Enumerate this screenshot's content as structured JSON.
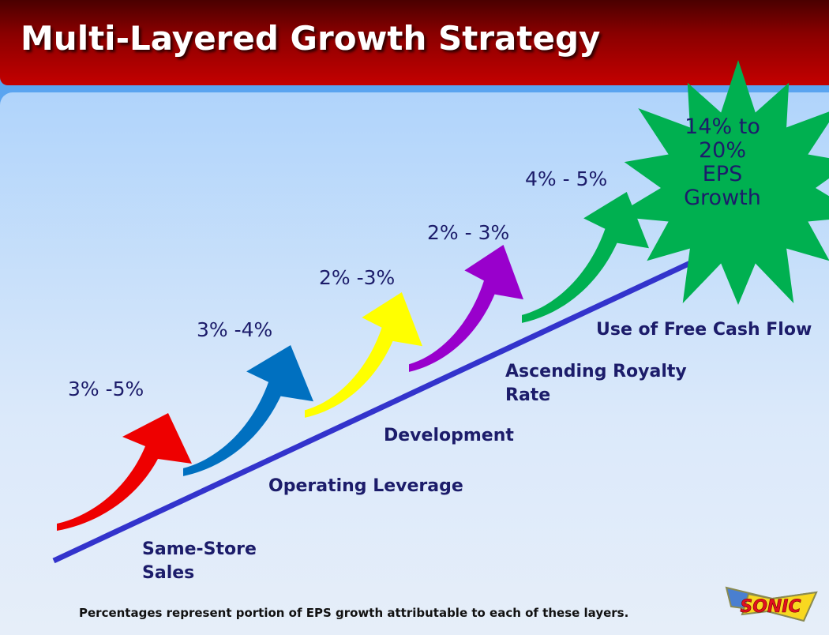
{
  "title": "Multi-Layered Growth Strategy",
  "layers": [
    {
      "label": "Same-Store Sales",
      "label_lines": [
        "Same-Store",
        "Sales"
      ],
      "percent": "3% -5%",
      "color": "#ee0000"
    },
    {
      "label": "Operating Leverage",
      "label_lines": [
        "Operating Leverage"
      ],
      "percent": "3% -4%",
      "color": "#0070c0"
    },
    {
      "label": "Development",
      "label_lines": [
        "Development"
      ],
      "percent": "2% -3%",
      "color": "#ffff00"
    },
    {
      "label": "Ascending Royalty Rate",
      "label_lines": [
        "Ascending Royalty",
        "Rate"
      ],
      "percent": "2% - 3%",
      "color": "#9900cc"
    },
    {
      "label": "Use of Free Cash Flow",
      "label_lines": [
        "Use of Free Cash Flow"
      ],
      "percent": "4% - 5%",
      "color": "#00b050"
    }
  ],
  "total": {
    "lines": [
      "14% to",
      "20%",
      "EPS",
      "Growth"
    ],
    "color": "#00b050"
  },
  "footer": "Percentages represent portion of EPS growth attributable to each of these layers.",
  "logo_text": "SONIC",
  "colors": {
    "line": "#3333cc",
    "text": "#1c1c6a",
    "header": "#c40000"
  }
}
